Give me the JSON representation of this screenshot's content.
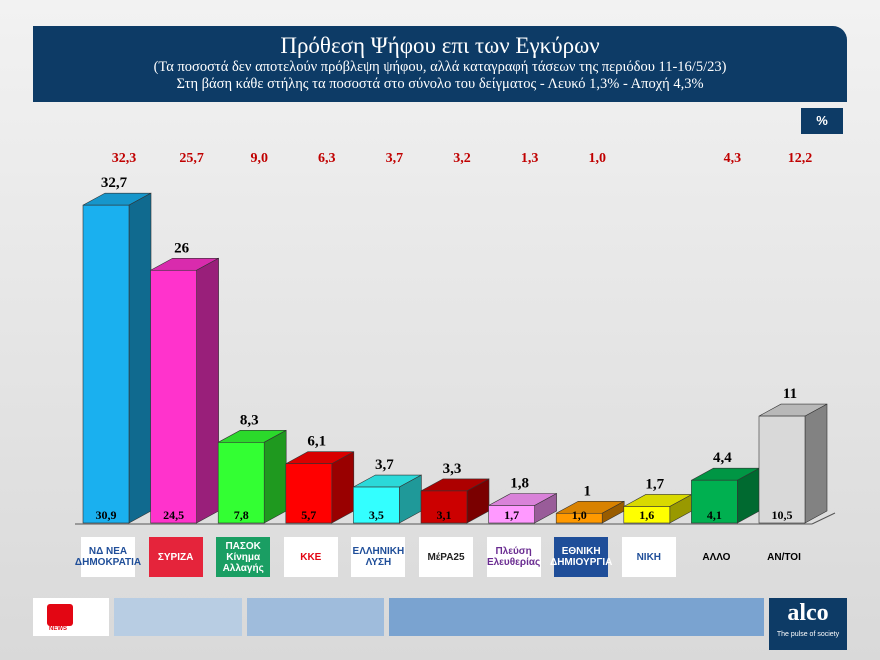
{
  "header": {
    "title": "Πρόθεση Ψήφου επι των Εγκύρων",
    "subtitle1": "(Τα ποσοστά δεν αποτελούν πρόβλεψη ψήφου, αλλά καταγραφή τάσεων της περιόδου  11-16/5/23)",
    "subtitle2": "Στη βάση κάθε στήλης τα ποσοστά στο σύνολο του δείγματος - Λευκό 1,3% - Αποχή 4,3%"
  },
  "unit_label": "%",
  "chart_data": {
    "type": "bar",
    "categories": [
      "ΝΔ",
      "ΣΥΡΙΖΑ",
      "ΠΑΣΟΚ",
      "ΚΚΕ",
      "ΕΛΛΗΝΙΚΗ ΛΥΣΗ",
      "ΜέΡΑ25",
      "Πλεύση Ελευθερίας",
      "ΕΘΝΙΚΗ ΔΗΜΙΟΥΡΓΙΑ",
      "ΝΙΚΗ",
      "ΑΛΛΟ",
      "ΑΝ/ΤΟΙ"
    ],
    "values": [
      32.7,
      26,
      8.3,
      6.1,
      3.7,
      3.3,
      1.8,
      1,
      1.7,
      4.4,
      11
    ],
    "value_labels": [
      "32,7",
      "26",
      "8,3",
      "6,1",
      "3,7",
      "3,3",
      "1,8",
      "1",
      "1,7",
      "4,4",
      "11"
    ],
    "base_labels": [
      "30,9",
      "24,5",
      "7,8",
      "5,7",
      "3,5",
      "3,1",
      "1,7",
      "1,0",
      "1,6",
      "4,1",
      "10,5"
    ],
    "previous_labels": [
      "32,3",
      "25,7",
      "9,0",
      "6,3",
      "3,7",
      "3,2",
      "1,3",
      "1,0",
      "",
      "4,3",
      "12,2"
    ],
    "colors": [
      "#1ab0ef",
      "#ff33cc",
      "#33ff33",
      "#ff0000",
      "#33ffff",
      "#cc0000",
      "#ff99ff",
      "#ff9900",
      "#ffff00",
      "#00b050",
      "#d9d9d9"
    ],
    "logo_text": [
      "ΝΔ ΝΕΑ ΔΗΜΟΚΡΑΤΙΑ",
      "ΣΥΡΙΖΑ",
      "ΠΑΣΟΚ Κίνημα Αλλαγής",
      "ΚΚΕ",
      "ΕΛΛΗΝΙΚΗ ΛΥΣΗ",
      "ΜέΡΑ25",
      "Πλεύση Ελευθερίας",
      "ΕΘΝΙΚΗ ΔΗΜΙΟΥΡΓΙΑ",
      "ΝΙΚΗ",
      "ΑΛΛΟ",
      "ΑΝ/ΤΟΙ"
    ],
    "grid": false
  },
  "footer": {
    "brand": "alco",
    "tagline": "The pulse of society",
    "news_logo": "NEWS"
  }
}
